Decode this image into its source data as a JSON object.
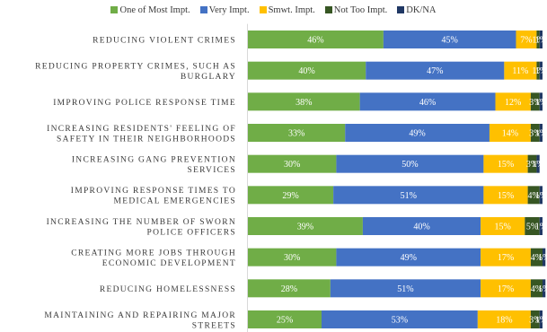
{
  "chart_data": {
    "type": "bar",
    "orientation": "horizontal",
    "stacked": true,
    "categories": [
      [
        "REDUCING VIOLENT CRIMES"
      ],
      [
        "REDUCING PROPERTY CRIMES, SUCH AS",
        "BURGLARY"
      ],
      [
        "IMPROVING POLICE RESPONSE TIME"
      ],
      [
        "INCREASING RESIDENTS' FEELING OF",
        "SAFETY IN THEIR NEIGHBORHOODS"
      ],
      [
        "INCREASING GANG PREVENTION",
        "SERVICES"
      ],
      [
        "IMPROVING RESPONSE TIMES TO",
        "MEDICAL EMERGENCIES"
      ],
      [
        "INCREASING THE NUMBER OF SWORN",
        "POLICE OFFICERS"
      ],
      [
        "CREATING MORE JOBS THROUGH",
        "ECONOMIC DEVELOPMENT"
      ],
      [
        "REDUCING HOMELESSNESS"
      ],
      [
        "MAINTAINING AND REPAIRING MAJOR",
        "STREETS"
      ]
    ],
    "series": [
      {
        "name": "One of Most Impt.",
        "color": "#70ad47",
        "values": [
          46,
          40,
          38,
          33,
          30,
          29,
          39,
          30,
          28,
          25
        ],
        "labels": [
          "46%",
          "40%",
          "38%",
          "33%",
          "30%",
          "29%",
          "39%",
          "30%",
          "28%",
          "25%"
        ]
      },
      {
        "name": "Very Impt.",
        "color": "#4472c4",
        "values": [
          45,
          47,
          46,
          49,
          50,
          51,
          40,
          49,
          51,
          53
        ],
        "labels": [
          "45%",
          "47%",
          "46%",
          "49%",
          "50%",
          "51%",
          "40%",
          "49%",
          "51%",
          "53%"
        ]
      },
      {
        "name": "Smwt. Impt.",
        "color": "#ffc000",
        "values": [
          7,
          11,
          12,
          14,
          15,
          15,
          15,
          17,
          17,
          18
        ],
        "labels": [
          "7%",
          "11%",
          "12%",
          "14%",
          "15%",
          "15%",
          "15%",
          "17%",
          "17%",
          "18%"
        ]
      },
      {
        "name": "Not Too Impt.",
        "color": "#375623",
        "values": [
          1,
          1,
          3,
          3,
          3,
          4,
          5,
          4,
          4,
          3
        ],
        "labels": [
          "1%",
          "1%",
          "3%",
          "3%",
          "3%",
          "4%",
          "5%",
          "4%",
          "4%",
          "3%"
        ]
      },
      {
        "name": "DK/NA",
        "color": "#203864",
        "values": [
          1,
          1,
          1,
          1,
          1,
          1,
          1,
          1,
          1,
          1
        ],
        "labels": [
          "1%",
          "1%",
          "1%",
          "1%",
          "1%",
          "1%",
          "1%",
          "1%",
          "1%",
          "1%"
        ]
      }
    ],
    "xlim": [
      0,
      100
    ],
    "legend_position": "top",
    "grid": false
  }
}
